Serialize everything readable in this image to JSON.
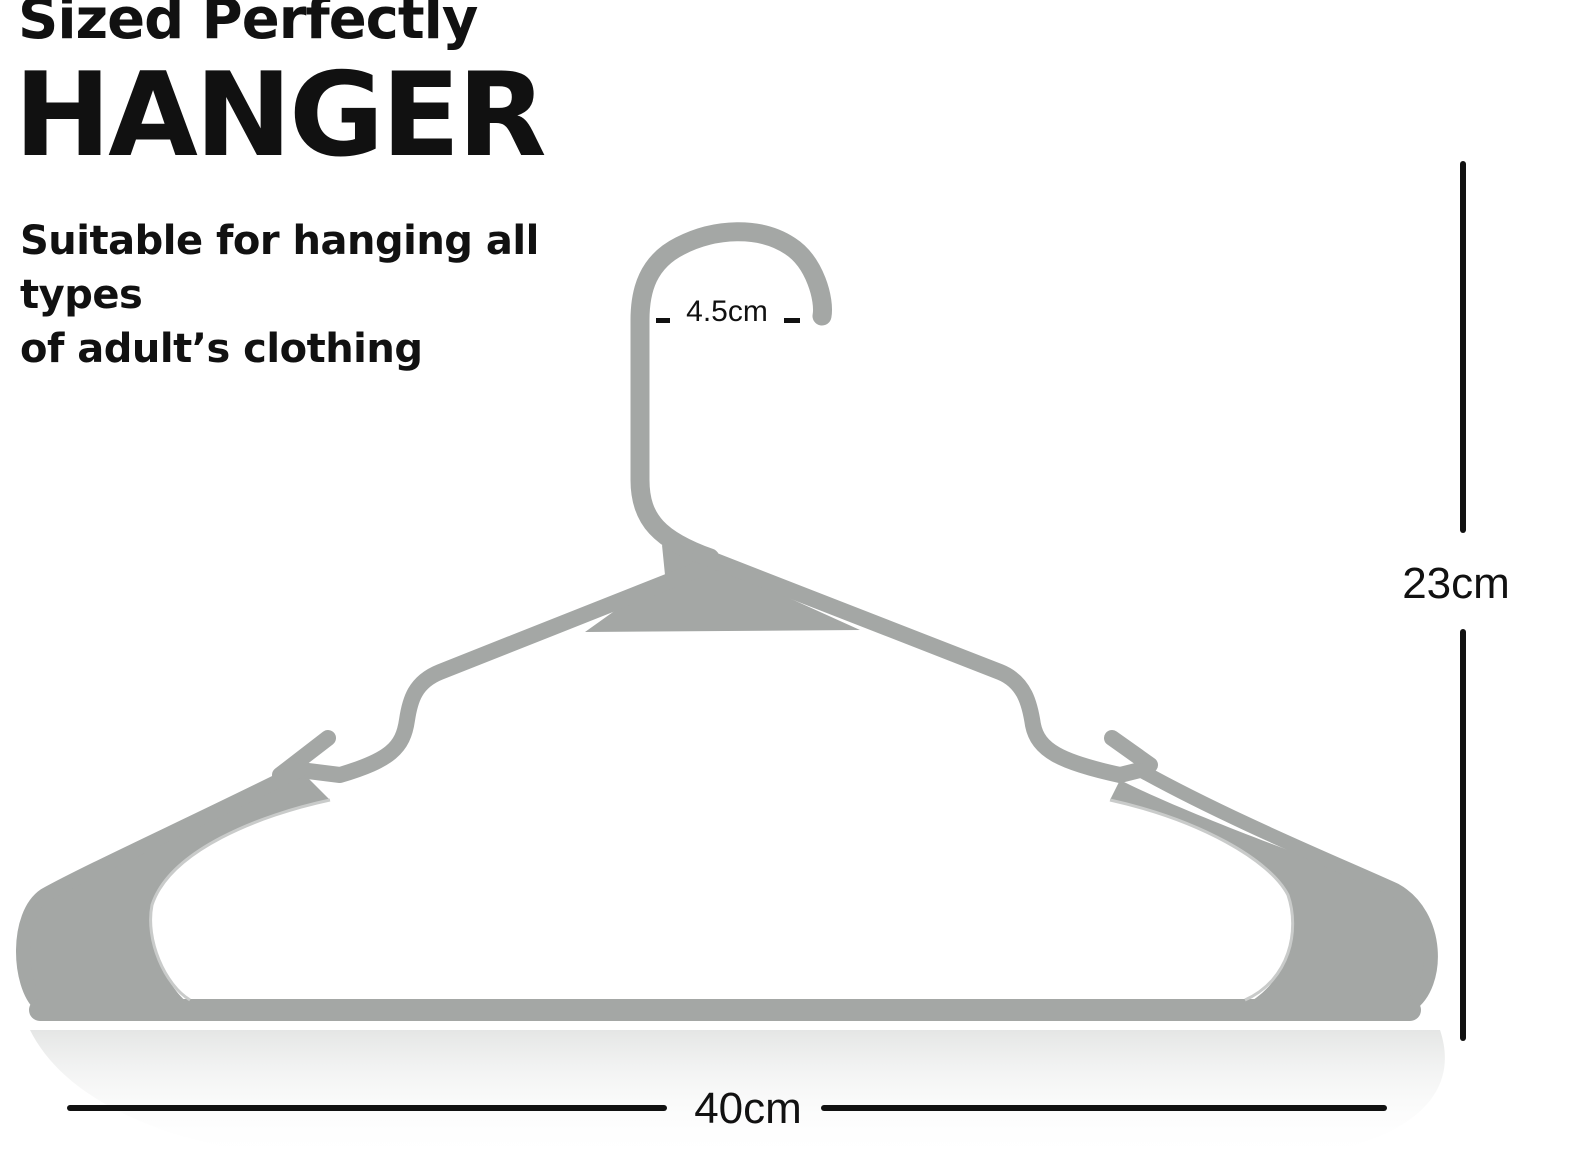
{
  "heading": {
    "subtitle": "Sized Perfectly",
    "title": "HANGER"
  },
  "description": {
    "line1": "Suitable for hanging all types",
    "line2": "of adult’s clothing"
  },
  "dimensions": {
    "hook_width": "4.5cm",
    "height": "23cm",
    "width": "40cm"
  },
  "colors": {
    "hanger": "#a4a7a5",
    "hanger_light": "#b6b9b7",
    "text": "#111111",
    "dimension_line": "#111111"
  }
}
